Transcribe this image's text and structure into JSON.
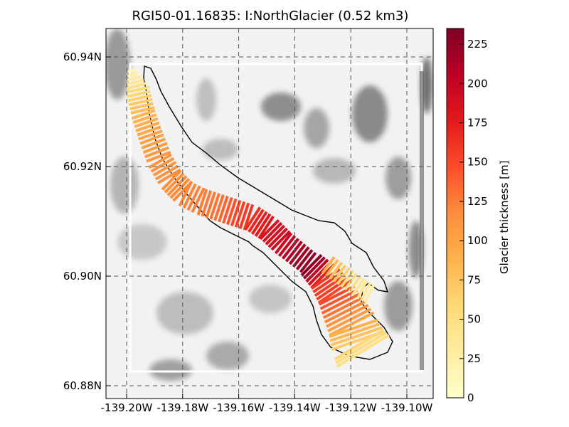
{
  "title": "RGI50-01.16835: I:NorthGlacier (0.52 km3)",
  "axes": {
    "x_ticks": [
      "-139.20W",
      "-139.18W",
      "-139.16W",
      "-139.14W",
      "-139.12W",
      "-139.10W"
    ],
    "y_ticks": [
      "60.94N",
      "60.92N",
      "60.90N",
      "60.88N"
    ],
    "x_values": [
      -139.2,
      -139.18,
      -139.16,
      -139.14,
      -139.12,
      -139.1
    ],
    "y_values": [
      60.94,
      60.92,
      60.9,
      60.88
    ],
    "grid": "dashed"
  },
  "colorbar": {
    "label": "Glacier thickness [m]",
    "min": 0,
    "max": 235,
    "ticks": [
      "0",
      "25",
      "50",
      "75",
      "100",
      "125",
      "150",
      "175",
      "200",
      "225"
    ],
    "tick_values": [
      0,
      25,
      50,
      75,
      100,
      125,
      150,
      175,
      200,
      225
    ],
    "colormap": "YlOrRd",
    "colors": [
      "#ffffcc",
      "#ffeda0",
      "#fed976",
      "#feb24c",
      "#fd8d3c",
      "#fc4e2a",
      "#e31a1c",
      "#bd0026",
      "#800026"
    ]
  },
  "map_data": {
    "type": "glacier-thickness-map",
    "background": "hillshade",
    "centerline": [
      [
        -139.198,
        60.9375,
        15
      ],
      [
        -139.196,
        60.934,
        55
      ],
      [
        -139.194,
        60.9295,
        85
      ],
      [
        -139.191,
        60.925,
        100
      ],
      [
        -139.188,
        60.921,
        110
      ],
      [
        -139.184,
        60.9175,
        115
      ],
      [
        -139.179,
        60.915,
        120
      ],
      [
        -139.173,
        60.9135,
        125
      ],
      [
        -139.167,
        60.9125,
        130
      ],
      [
        -139.161,
        60.9115,
        150
      ],
      [
        -139.155,
        60.9105,
        165
      ],
      [
        -139.149,
        60.9085,
        185
      ],
      [
        -139.144,
        60.906,
        195
      ],
      [
        -139.139,
        60.904,
        215
      ],
      [
        -139.134,
        60.902,
        230
      ],
      [
        -139.129,
        60.8995,
        160
      ],
      [
        -139.125,
        60.8965,
        150
      ],
      [
        -139.122,
        60.8935,
        120
      ],
      [
        -139.119,
        60.8905,
        90
      ],
      [
        -139.117,
        60.8875,
        60
      ],
      [
        -139.115,
        60.8858,
        40
      ]
    ],
    "branch": [
      [
        -139.128,
        60.902,
        90
      ],
      [
        -139.124,
        60.9005,
        70
      ],
      [
        -139.12,
        60.899,
        50
      ],
      [
        -139.116,
        60.8975,
        35
      ],
      [
        -139.112,
        60.8965,
        25
      ]
    ]
  }
}
